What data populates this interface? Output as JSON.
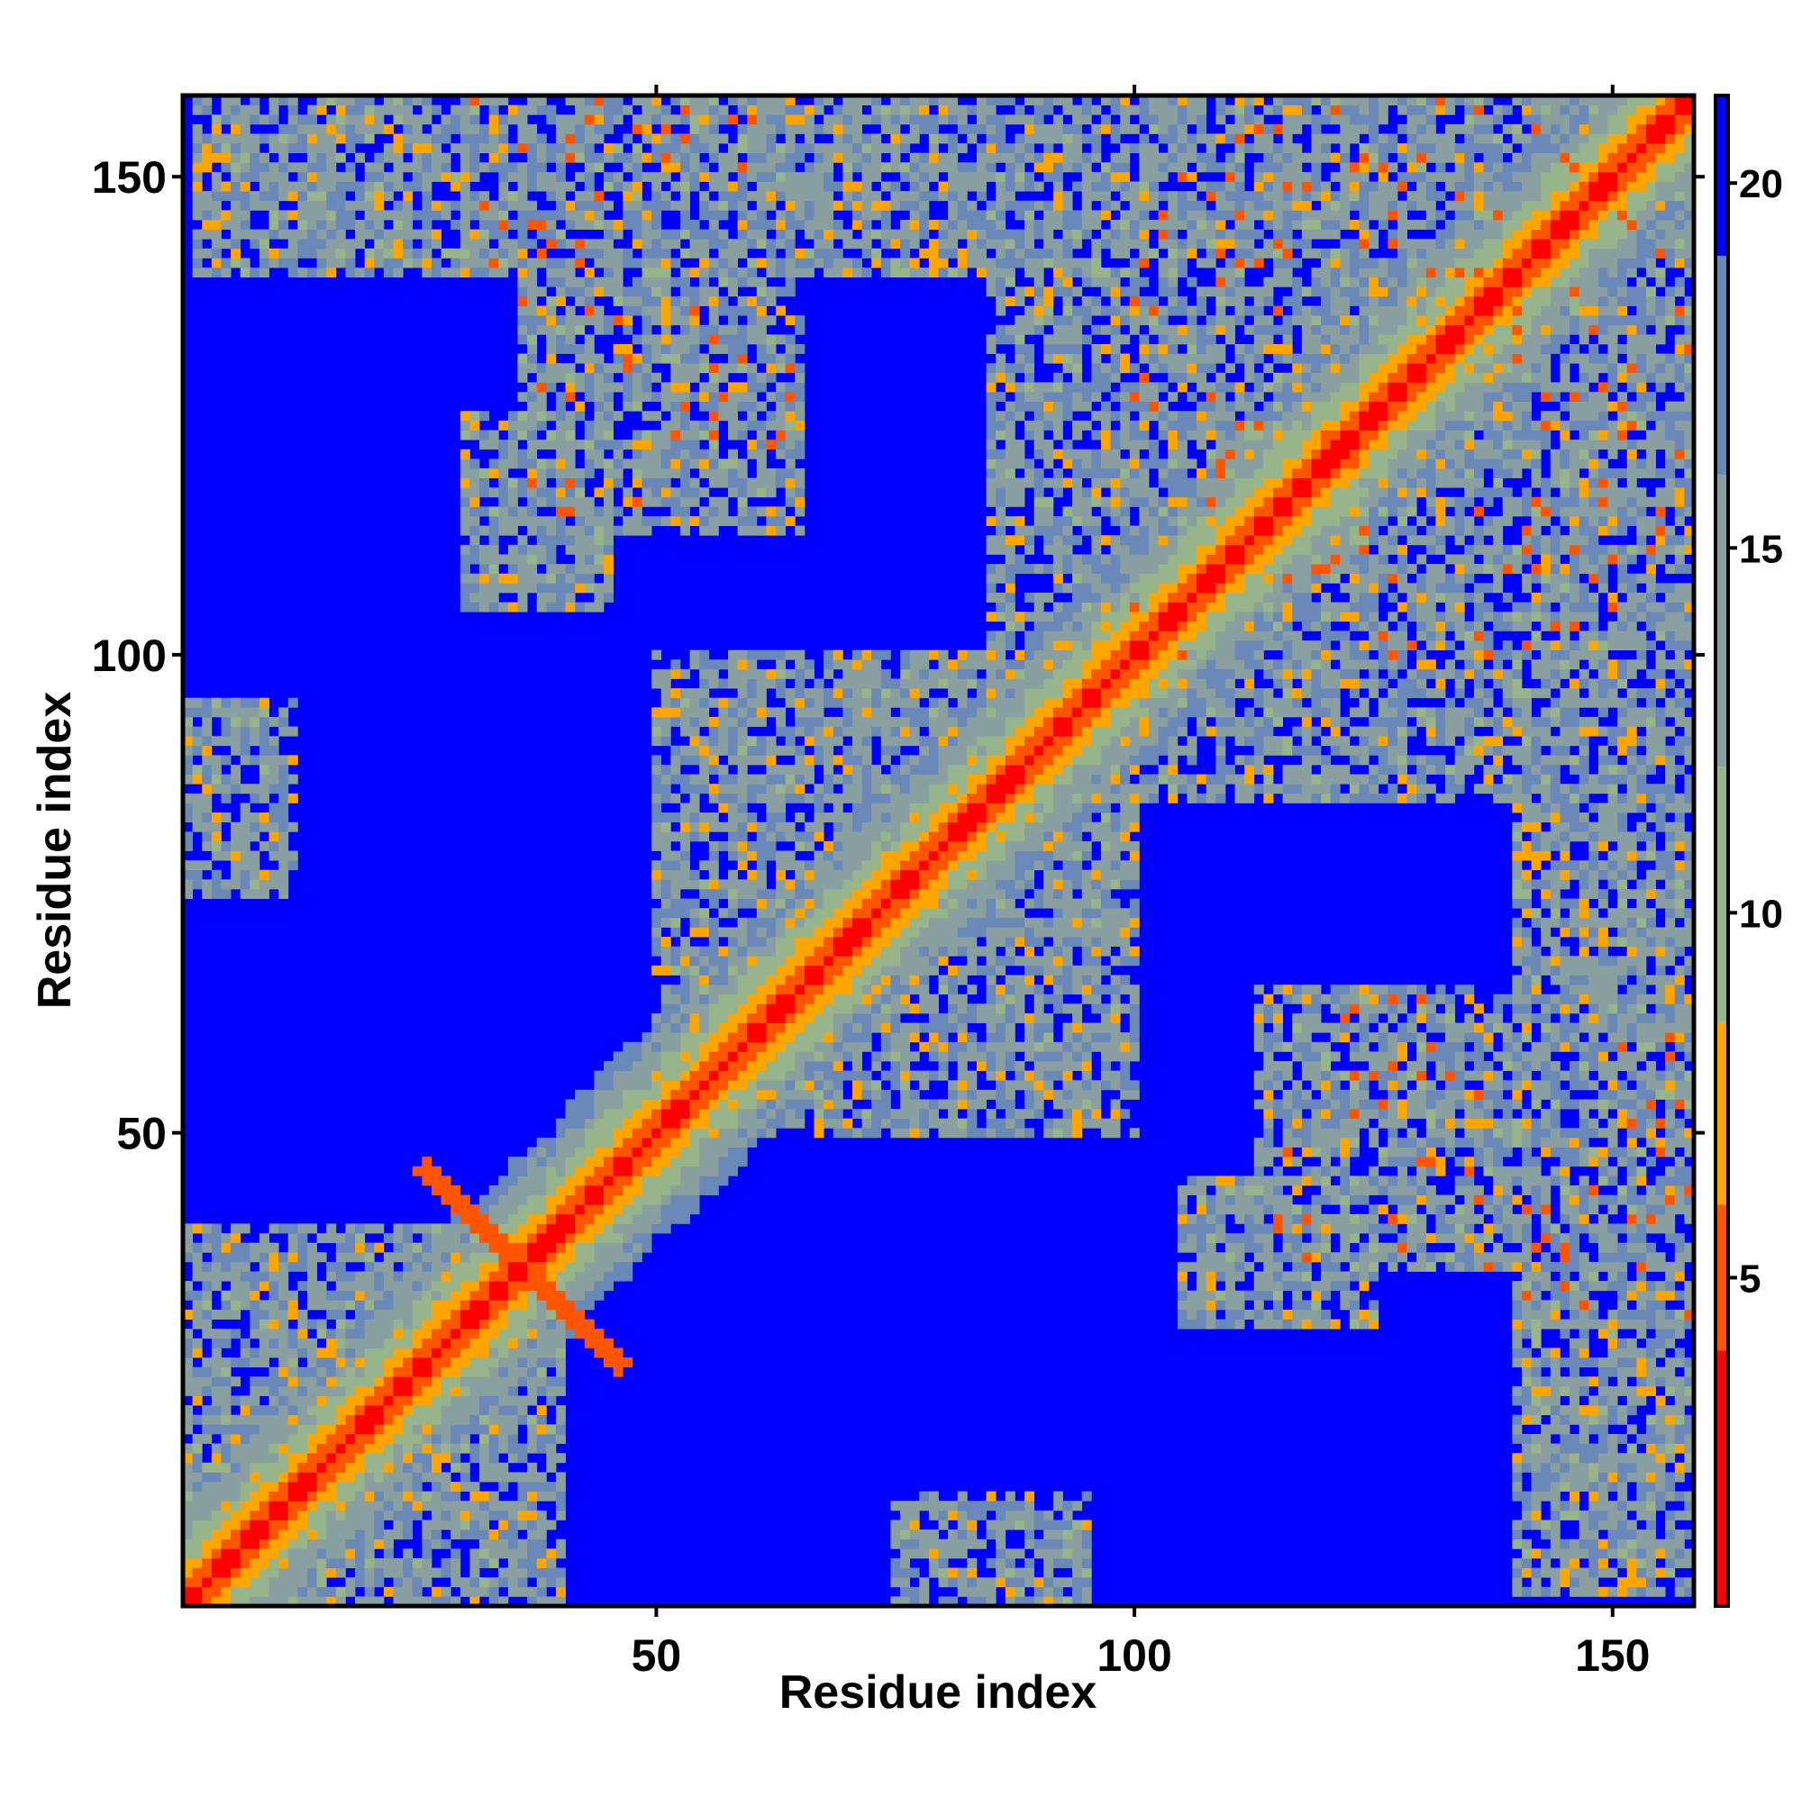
{
  "chart_data": {
    "type": "heatmap",
    "title": "",
    "xlabel": "Residue index",
    "ylabel": "Residue index",
    "n_residues": 158,
    "xlim": [
      0.5,
      158.5
    ],
    "ylim": [
      0.5,
      158.5
    ],
    "x_ticks": [
      50,
      100,
      150
    ],
    "y_ticks": [
      50,
      100,
      150
    ],
    "x_tick_labels": [
      "50",
      "100",
      "150"
    ],
    "y_tick_labels": [
      "50",
      "100",
      "150"
    ],
    "grid": false,
    "legend": "colorbar, right",
    "value_description": "pairwise distance map, symmetric, 0 on diagonal, saturates at about 21",
    "colorbar": {
      "range": [
        0.5,
        21.2
      ],
      "ticks": [
        5,
        10,
        15,
        20
      ],
      "tick_labels": [
        "5",
        "10",
        "15",
        "20"
      ],
      "colors": [
        {
          "from": 0.5,
          "to": 4,
          "color": "#ff0000"
        },
        {
          "from": 4,
          "to": 6,
          "color": "#ff5500"
        },
        {
          "from": 6,
          "to": 8.5,
          "color": "#ffa500"
        },
        {
          "from": 8.5,
          "to": 12,
          "color": "#98b48a"
        },
        {
          "from": 12,
          "to": 16,
          "color": "#8aa0a0"
        },
        {
          "from": 16,
          "to": 19,
          "color": "#6a88b8"
        },
        {
          "from": 19,
          "to": 21.2,
          "color": "#0000ff"
        }
      ]
    },
    "structure": {
      "diagonal_band_halfwidth": 5,
      "contact_blocks": [
        {
          "i": [
            1,
            40
          ],
          "j": [
            1,
            40
          ],
          "min": 6
        },
        {
          "i": [
            2,
            30
          ],
          "j": [
            140,
            158
          ],
          "min": 7
        },
        {
          "i": [
            30,
            62
          ],
          "j": [
            140,
            158
          ],
          "min": 5
        },
        {
          "i": [
            38,
            65
          ],
          "j": [
            113,
            135
          ],
          "min": 5
        },
        {
          "i": [
            50,
            100
          ],
          "j": [
            55,
            100
          ],
          "min": 6
        },
        {
          "i": [
            85,
            158
          ],
          "j": [
            85,
            158
          ],
          "min": 6
        },
        {
          "i": [
            100,
            158
          ],
          "j": [
            100,
            158
          ],
          "min": 5
        },
        {
          "i": [
            115,
            140
          ],
          "j": [
            36,
            64
          ],
          "min": 5
        },
        {
          "i": [
            140,
            158
          ],
          "j": [
            36,
            95
          ],
          "min": 6
        },
        {
          "i": [
            140,
            158
          ],
          "j": [
            105,
            140
          ],
          "min": 6
        },
        {
          "i": [
            75,
            95
          ],
          "j": [
            1,
            12
          ],
          "min": 7
        },
        {
          "i": [
            1,
            12
          ],
          "j": [
            75,
            90
          ],
          "min": 6
        },
        {
          "i": [
            30,
            45
          ],
          "j": [
            105,
            125
          ],
          "min": 7
        }
      ],
      "antiparallel_contacts": [
        {
          "sum": 72,
          "i_range": [
            26,
            46
          ],
          "value": 5
        }
      ]
    }
  }
}
